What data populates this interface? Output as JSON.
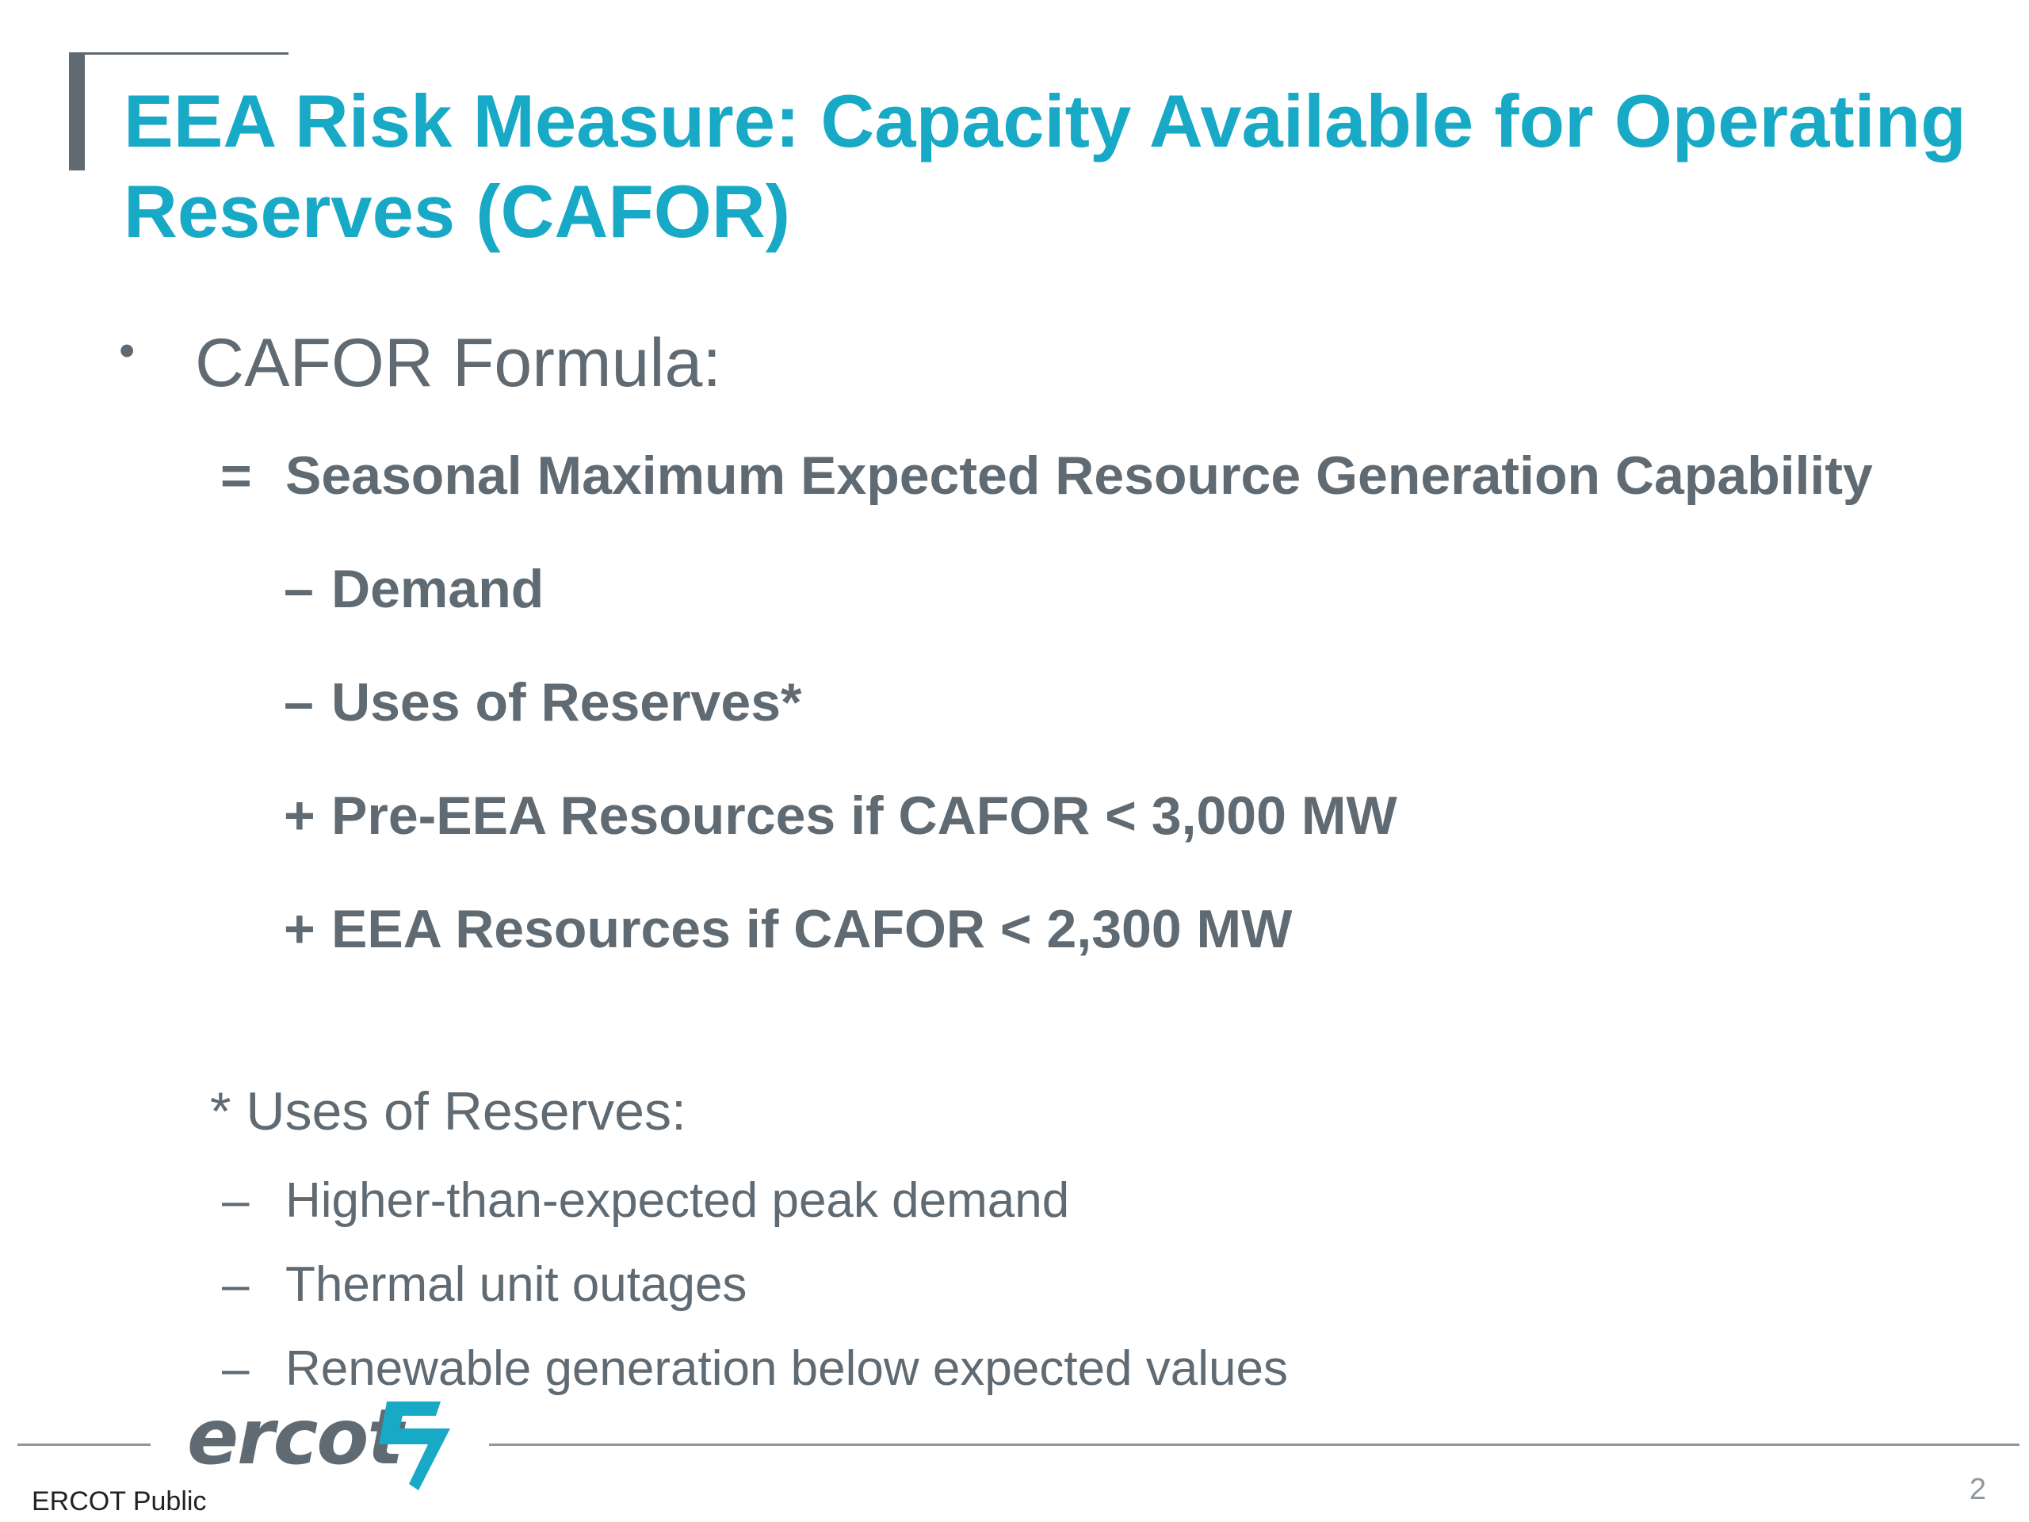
{
  "title": "EEA Risk Measure: Capacity Available for Operating Reserves (CAFOR)",
  "bullet": {
    "marker": "•",
    "text": "CAFOR Formula:"
  },
  "formula": [
    {
      "op": "=",
      "text": "Seasonal Maximum Expected Resource Generation Capability"
    },
    {
      "op": "–",
      "text": "Demand"
    },
    {
      "op": "–",
      "text": "Uses of Reserves*"
    },
    {
      "op": "+",
      "text": "Pre-EEA Resources if CAFOR < 3,000 MW"
    },
    {
      "op": "+",
      "text": "EEA Resources if CAFOR < 2,300 MW"
    }
  ],
  "footnote": {
    "heading": "* Uses of Reserves:",
    "items": [
      {
        "dash": "–",
        "text": "Higher-than-expected peak demand"
      },
      {
        "dash": "–",
        "text": "Thermal unit outages"
      },
      {
        "dash": "–",
        "text": "Renewable generation below expected values"
      }
    ]
  },
  "footer": {
    "logo_text": "ercot",
    "logo_icon": "ercot-bolt-icon",
    "label": "ERCOT Public",
    "page_number": "2"
  },
  "colors": {
    "title": "#17a9c5",
    "body": "#5f6a72",
    "rule": "#8f979d",
    "logo_mark": "#17a9c5"
  }
}
